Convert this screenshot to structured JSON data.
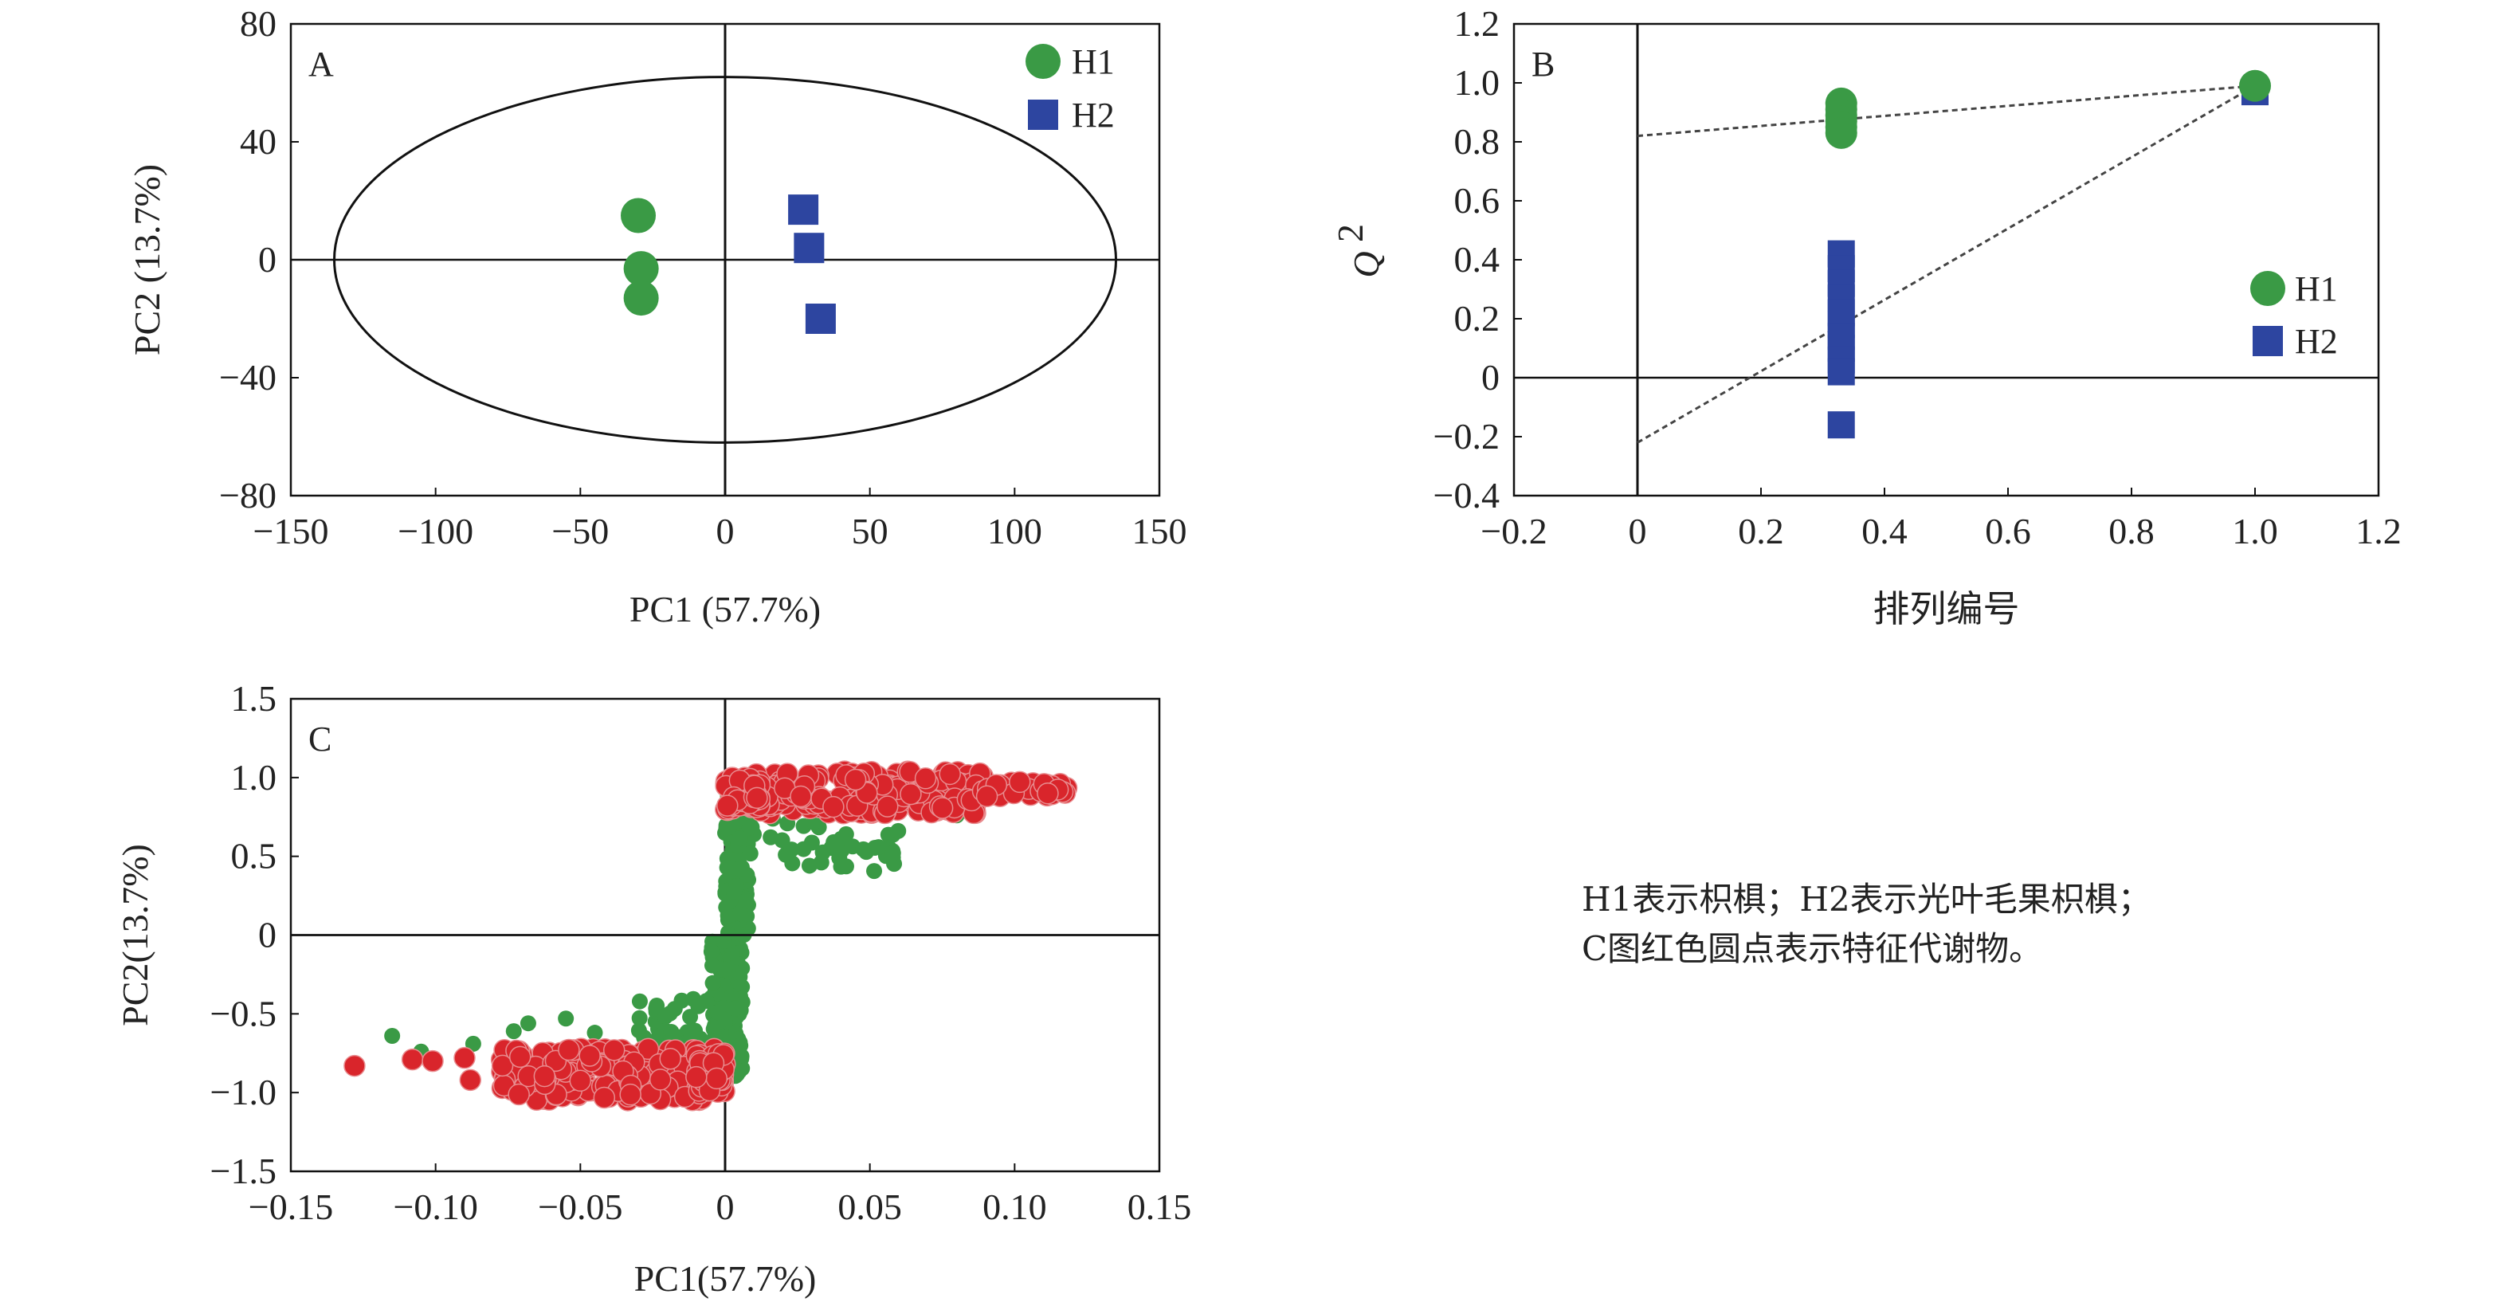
{
  "colors": {
    "h1": "#3a9a45",
    "h2": "#2d45a0",
    "feature": "#d9252b",
    "axis": "#111111"
  },
  "chart_data": [
    {
      "panel": "A",
      "type": "scatter",
      "xlabel": "PC1 (57.7%)",
      "ylabel": "PC2 (13.7%)",
      "xlim": [
        -150,
        150
      ],
      "ylim": [
        -80,
        80
      ],
      "x_ticks": [
        -150,
        -100,
        -50,
        0,
        50,
        100,
        150
      ],
      "x_tick_labels": [
        "−150",
        "−100",
        "−50",
        "0",
        "50",
        "100",
        "150"
      ],
      "y_ticks": [
        80,
        40,
        0,
        -40,
        -80
      ],
      "y_tick_labels": [
        "80",
        "40",
        "0",
        "−40",
        "−80"
      ],
      "legend_position": "top-right",
      "series": [
        {
          "name": "H1",
          "marker": "circle",
          "color": "#3a9a45",
          "points": [
            [
              -30,
              15
            ],
            [
              -29,
              -3
            ],
            [
              -29,
              -13
            ]
          ]
        },
        {
          "name": "H2",
          "marker": "square",
          "color": "#2d45a0",
          "points": [
            [
              27,
              17
            ],
            [
              29,
              4
            ],
            [
              33,
              -20
            ]
          ]
        }
      ],
      "ellipse": {
        "center": [
          0,
          0
        ],
        "rx": 135,
        "ry": 62
      }
    },
    {
      "panel": "B",
      "type": "scatter",
      "xlabel": "排列编号",
      "ylabel": "Q2",
      "ylabel_base": "Q",
      "ylabel_sup": "2",
      "xlim": [
        -0.2,
        1.2
      ],
      "ylim": [
        -0.4,
        1.2
      ],
      "x_ticks": [
        -0.2,
        0,
        0.2,
        0.4,
        0.6,
        0.8,
        1.0,
        1.2
      ],
      "x_tick_labels": [
        "−0.2",
        "0",
        "0.2",
        "0.4",
        "0.6",
        "0.8",
        "1.0",
        "1.2"
      ],
      "y_ticks": [
        1.2,
        1.0,
        0.8,
        0.6,
        0.4,
        0.2,
        0,
        -0.2,
        -0.4
      ],
      "y_tick_labels": [
        "1.2",
        "1.0",
        "0.8",
        "0.6",
        "0.4",
        "0.2",
        "0",
        "−0.2",
        "−0.4"
      ],
      "legend_position": "right",
      "series": [
        {
          "name": "H1",
          "marker": "circle",
          "color": "#3a9a45",
          "points": [
            [
              0.33,
              0.93
            ],
            [
              0.33,
              0.91
            ],
            [
              0.33,
              0.89
            ],
            [
              0.33,
              0.87
            ],
            [
              0.33,
              0.85
            ],
            [
              0.33,
              0.83
            ],
            [
              1.0,
              0.99
            ]
          ]
        },
        {
          "name": "H2",
          "marker": "square",
          "color": "#2d45a0",
          "points": [
            [
              0.33,
              0.42
            ],
            [
              0.33,
              0.37
            ],
            [
              0.33,
              0.32
            ],
            [
              0.33,
              0.27
            ],
            [
              0.33,
              0.22
            ],
            [
              0.33,
              0.18
            ],
            [
              0.33,
              0.14
            ],
            [
              0.33,
              0.1
            ],
            [
              0.33,
              0.06
            ],
            [
              0.33,
              0.02
            ],
            [
              0.33,
              -0.16
            ],
            [
              1.0,
              0.97
            ]
          ]
        }
      ],
      "trend_lines": [
        {
          "series": "H1",
          "from": [
            0,
            0.82
          ],
          "to": [
            1.0,
            0.99
          ]
        },
        {
          "series": "H2",
          "from": [
            0,
            -0.22
          ],
          "to": [
            1.0,
            0.99
          ]
        }
      ]
    },
    {
      "panel": "C",
      "type": "scatter",
      "xlabel": "PC1(57.7%)",
      "ylabel": "PC2(13.7%)",
      "xlim": [
        -0.15,
        0.15
      ],
      "ylim": [
        -1.5,
        1.5
      ],
      "x_ticks": [
        -0.15,
        -0.1,
        -0.05,
        0,
        0.05,
        0.1,
        0.15
      ],
      "x_tick_labels": [
        "−0.15",
        "−0.10",
        "−0.05",
        "0",
        "0.05",
        "0.10",
        "0.15"
      ],
      "y_ticks": [
        1.5,
        1.0,
        0.5,
        0,
        -0.5,
        -1.0,
        -1.5
      ],
      "y_tick_labels": [
        "1.5",
        "1.0",
        "0.5",
        "0",
        "−0.5",
        "−1.0",
        "−1.5"
      ],
      "series": [
        {
          "name": "metabolites",
          "color": "#3a9a45",
          "clusters": [
            {
              "x": [
                0.0,
                0.006
              ],
              "y": [
                -0.9,
                0.0
              ],
              "n": 90
            },
            {
              "x": [
                -0.005,
                0.0
              ],
              "y": [
                -0.85,
                0.0
              ],
              "n": 60
            },
            {
              "x": [
                0.0,
                0.008
              ],
              "y": [
                0.0,
                0.9
              ],
              "n": 100
            },
            {
              "x": [
                0.005,
                0.06
              ],
              "y": [
                0.4,
                0.75
              ],
              "n": 45
            },
            {
              "x": [
                -0.03,
                -0.005
              ],
              "y": [
                -0.75,
                -0.4
              ],
              "n": 40
            }
          ],
          "points": [
            [
              -0.115,
              -0.64
            ],
            [
              -0.105,
              -0.74
            ],
            [
              -0.087,
              -0.69
            ],
            [
              -0.073,
              -0.61
            ],
            [
              -0.068,
              -0.56
            ],
            [
              -0.055,
              -0.53
            ],
            [
              -0.045,
              -0.62
            ],
            [
              0.04,
              0.61
            ],
            [
              0.058,
              0.52
            ],
            [
              0.08,
              0.76
            ]
          ]
        },
        {
          "name": "feature metabolites",
          "color": "#d9252b",
          "clusters": [
            {
              "x": [
                -0.078,
                0.0
              ],
              "y": [
                -1.05,
                -0.72
              ],
              "n": 230
            },
            {
              "x": [
                -0.01,
                0.0
              ],
              "y": [
                -1.0,
                -0.75
              ],
              "n": 50
            },
            {
              "x": [
                0.0,
                0.09
              ],
              "y": [
                0.77,
                1.04
              ],
              "n": 230
            },
            {
              "x": [
                0.0,
                0.012
              ],
              "y": [
                0.8,
                1.0
              ],
              "n": 50
            },
            {
              "x": [
                0.09,
                0.118
              ],
              "y": [
                0.86,
                1.0
              ],
              "n": 30
            }
          ],
          "points": [
            [
              -0.128,
              -0.83
            ],
            [
              -0.108,
              -0.79
            ],
            [
              -0.101,
              -0.8
            ],
            [
              -0.09,
              -0.78
            ],
            [
              -0.088,
              -0.92
            ]
          ]
        }
      ]
    }
  ],
  "note": {
    "line1": "H1表示枳椇；H2表示光叶毛果枳椇；",
    "line2": "C图红色圆点表示特征代谢物。"
  }
}
